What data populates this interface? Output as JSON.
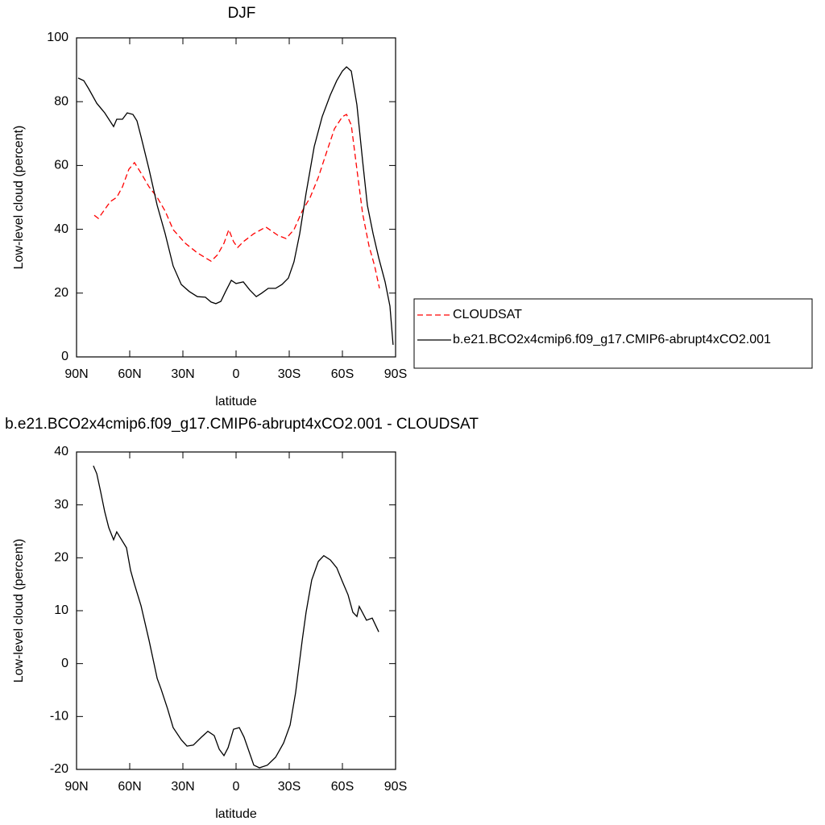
{
  "chart_data": [
    {
      "type": "line",
      "title": "DJF",
      "xlabel": "latitude",
      "ylabel": "Low-level cloud (percent)",
      "xlim": [
        90,
        -90
      ],
      "xticks": [
        {
          "value": 90,
          "label": "90N"
        },
        {
          "value": 60,
          "label": "60N"
        },
        {
          "value": 30,
          "label": "30N"
        },
        0,
        {
          "value": -30,
          "label": "30S"
        },
        {
          "value": -60,
          "label": "60S"
        },
        {
          "value": -90,
          "label": "90S"
        }
      ],
      "ylim": [
        0,
        100
      ],
      "yticks": [
        0,
        20,
        40,
        60,
        80,
        100
      ],
      "legend": "right",
      "series": [
        {
          "name": "CLOUDSAT",
          "color": "#ff0000",
          "linestyle": "dashed",
          "x": [
            80,
            77.7,
            74.1,
            70.9,
            67.3,
            64.1,
            60.5,
            57.3,
            53.6,
            49.1,
            44.5,
            40,
            35.5,
            28.6,
            21.8,
            14.1,
            10.5,
            6.8,
            4.1,
            1.4,
            -0.9,
            -4.1,
            -10,
            -16.8,
            -23.6,
            -28.2,
            -32.7,
            -37.3,
            -41.8,
            -46.4,
            -50.9,
            -55.5,
            -60,
            -62.3,
            -65,
            -68.2,
            -71.4,
            -75,
            -78.2,
            -80.9
          ],
          "values": [
            44.4,
            43.4,
            46.2,
            48.7,
            50,
            53.3,
            58.8,
            60.9,
            57.6,
            53.3,
            50,
            45.7,
            39.9,
            35.6,
            32.6,
            30,
            32,
            35.6,
            39.9,
            36.1,
            34.3,
            36.1,
            38.6,
            40.7,
            38.1,
            37.1,
            39.9,
            45.7,
            50,
            56.3,
            63.9,
            71.5,
            75.3,
            76,
            72.7,
            58.8,
            44.9,
            34.8,
            28.5,
            21.5
          ]
        },
        {
          "name": "b.e21.BCO2x4cmip6.f09_g17.CMIP6-abrupt4xCO2.001",
          "color": "#000000",
          "linestyle": "solid",
          "x": [
            89.1,
            85.9,
            83.2,
            78.6,
            74.1,
            69.1,
            67.3,
            64.1,
            61.4,
            58.2,
            55.9,
            53.6,
            49.1,
            44.5,
            40,
            35.5,
            30.9,
            26.4,
            21.8,
            17.3,
            14.1,
            11.4,
            8.6,
            5.9,
            2.7,
            0,
            -4.1,
            -7.7,
            -11.4,
            -14.5,
            -18.2,
            -22.3,
            -25.9,
            -29.5,
            -32.7,
            -35.9,
            -39.5,
            -44.1,
            -48.6,
            -53.2,
            -56.8,
            -60,
            -62.3,
            -65,
            -68.2,
            -71.4,
            -74.1,
            -77.3,
            -80.5,
            -84.1,
            -86.8,
            -88.6
          ],
          "values": [
            87.4,
            86.6,
            84.1,
            79.5,
            76.5,
            72.2,
            74.5,
            74.5,
            76.5,
            76,
            74,
            69,
            58.8,
            47.5,
            38.6,
            28.5,
            22.7,
            20.5,
            18.9,
            18.7,
            17.2,
            16.7,
            17.4,
            20.5,
            24,
            23,
            23.5,
            21,
            18.9,
            20,
            21.5,
            21.5,
            22.7,
            24.7,
            29.8,
            38.6,
            51.3,
            65.9,
            75.3,
            82.1,
            86.6,
            89.6,
            90.9,
            89.6,
            79,
            61.4,
            47.5,
            38.6,
            31,
            23.5,
            15.9,
            3.8
          ]
        }
      ]
    },
    {
      "type": "line",
      "title": "b.e21.BCO2x4cmip6.f09_g17.CMIP6-abrupt4xCO2.001 - CLOUDSAT",
      "xlabel": "latitude",
      "ylabel": "Low-level cloud (percent)",
      "xlim": [
        90,
        -90
      ],
      "xticks": [
        {
          "value": 90,
          "label": "90N"
        },
        {
          "value": 60,
          "label": "60N"
        },
        {
          "value": 30,
          "label": "30N"
        },
        0,
        {
          "value": -30,
          "label": "30S"
        },
        {
          "value": -60,
          "label": "60S"
        },
        {
          "value": -90,
          "label": "90S"
        }
      ],
      "ylim": [
        -20,
        40
      ],
      "yticks": [
        -20,
        -10,
        0,
        10,
        20,
        30,
        40
      ],
      "series": [
        {
          "color": "#000000",
          "linestyle": "solid",
          "x": [
            80.5,
            78.6,
            76.4,
            74.1,
            71.8,
            69.1,
            67.3,
            61.8,
            59.5,
            57.3,
            53.6,
            49.1,
            44.5,
            42.3,
            38.6,
            35.5,
            30.9,
            27.7,
            24.1,
            19.5,
            15.9,
            12.3,
            9.5,
            6.8,
            4.5,
            1.4,
            -1.8,
            -4.5,
            -10,
            -13.2,
            -17.7,
            -22.3,
            -26.8,
            -30.5,
            -33.6,
            -37.3,
            -39.5,
            -42.7,
            -46.4,
            -49.5,
            -53.2,
            -56.8,
            -60,
            -63.2,
            -65.9,
            -68.2,
            -69.5,
            -73.6,
            -76.8,
            -80.5
          ],
          "values": [
            37.4,
            35.9,
            32.5,
            28.7,
            25.7,
            23.4,
            24.9,
            21.9,
            17.6,
            15,
            10.9,
            4.4,
            -2.8,
            -4.8,
            -8.6,
            -12.1,
            -14.4,
            -15.6,
            -15.4,
            -13.9,
            -12.8,
            -13.6,
            -16.2,
            -17.4,
            -15.9,
            -12.4,
            -12.1,
            -13.9,
            -19.2,
            -19.7,
            -19.2,
            -17.7,
            -15,
            -11.6,
            -5.5,
            4.4,
            9.7,
            15.8,
            19.3,
            20.4,
            19.6,
            18.1,
            15.5,
            13,
            9.7,
            8.9,
            10.8,
            8.2,
            8.6,
            6
          ]
        }
      ]
    }
  ]
}
